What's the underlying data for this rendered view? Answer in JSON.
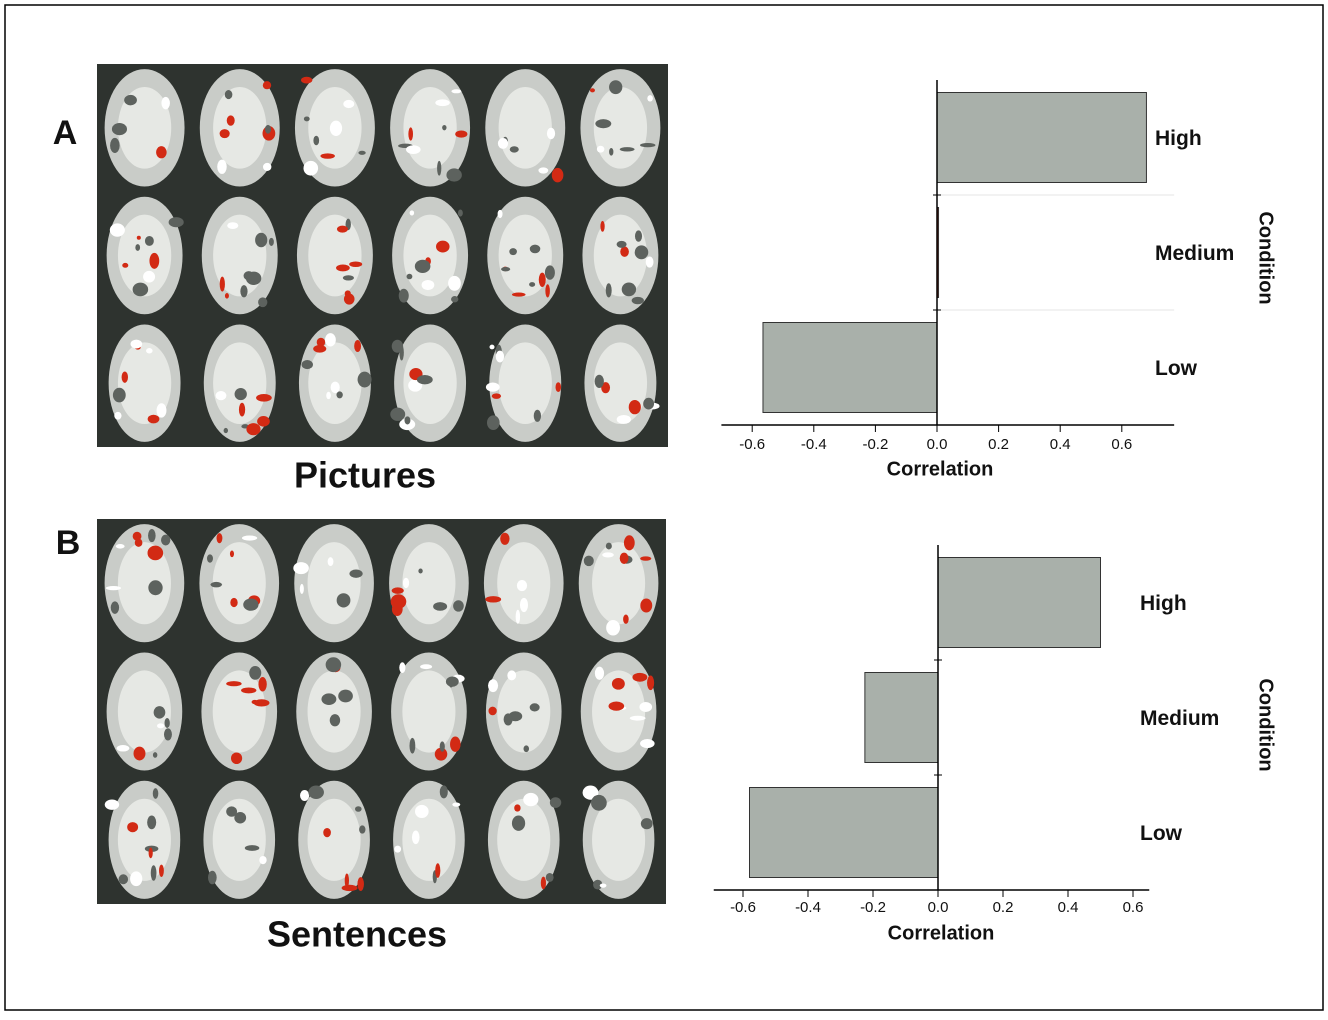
{
  "panels": [
    {
      "label": "A",
      "caption": "Pictures"
    },
    {
      "label": "B",
      "caption": "Sentences"
    }
  ],
  "chart_data": [
    {
      "type": "barh",
      "categories": [
        "High",
        "Medium",
        "Low"
      ],
      "values": [
        0.68,
        0.005,
        -0.565
      ],
      "colors": [
        "#a9b0aa",
        "#8b2a1a",
        "#a9b0aa"
      ],
      "xlabel": "Correlation",
      "ylabel": "Condition",
      "xlim": [
        -0.7,
        0.77
      ],
      "xticks": [
        -0.6,
        -0.4,
        -0.2,
        {
          "value": 0,
          "label": "0.0"
        },
        0.2,
        0.4,
        0.6
      ],
      "grid": true
    },
    {
      "type": "barh",
      "categories": [
        "High",
        "Medium",
        "Low"
      ],
      "values": [
        0.5,
        -0.225,
        -0.58
      ],
      "colors": [
        "#a9b0aa",
        "#a9b0aa",
        "#a9b0aa"
      ],
      "xlabel": "Correlation",
      "ylabel": "Condition",
      "xlim": [
        -0.69,
        0.65
      ],
      "xticks": [
        -0.6,
        -0.4,
        -0.2,
        {
          "value": 0,
          "label": "0.0"
        },
        0.2,
        0.4,
        0.6
      ],
      "grid": false
    }
  ]
}
